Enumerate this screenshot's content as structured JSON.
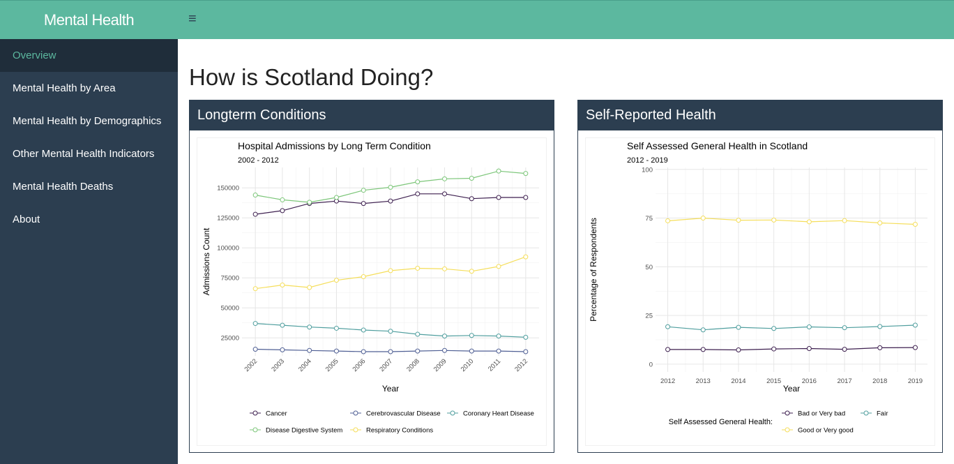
{
  "app": {
    "title": "Mental Health"
  },
  "icons": {
    "menu": "hamburger-menu-icon"
  },
  "colors": {
    "accent": "#5cb89f",
    "sidebar": "#2c3e50",
    "sidebar_active": "#1f2d3a"
  },
  "sidebar": {
    "items": [
      {
        "label": "Overview",
        "active": true
      },
      {
        "label": "Mental Health by Area",
        "active": false
      },
      {
        "label": "Mental Health by Demographics",
        "active": false
      },
      {
        "label": "Other Mental Health Indicators",
        "active": false
      },
      {
        "label": "Mental Health Deaths",
        "active": false
      },
      {
        "label": "About",
        "active": false
      }
    ]
  },
  "main": {
    "heading": "How is Scotland Doing?",
    "boxes": [
      {
        "header": "Longterm Conditions"
      },
      {
        "header": "Self-Reported Health"
      }
    ]
  },
  "chart_data": [
    {
      "type": "line",
      "title": "Hospital Admissions by Long Term Condition",
      "subtitle": "2002 - 2012",
      "xlabel": "Year",
      "ylabel": "Admissions Count",
      "x": [
        "2002",
        "2003",
        "2004",
        "2005",
        "2006",
        "2007",
        "2008",
        "2009",
        "2010",
        "2011",
        "2012"
      ],
      "ylim": [
        10000,
        167000
      ],
      "yticks": [
        25000,
        50000,
        75000,
        100000,
        125000,
        150000
      ],
      "ytick_labels": [
        "25000",
        "50000",
        "75000",
        "100000",
        "125000",
        "150000"
      ],
      "grid": true,
      "legend_title": "",
      "legend_position": "bottom",
      "series": [
        {
          "name": "Cancer",
          "color": "#3d1f4f",
          "values": [
            128000,
            131000,
            137000,
            139000,
            137000,
            139000,
            145000,
            145000,
            141000,
            142000,
            142000
          ]
        },
        {
          "name": "Cerebrovascular Disease",
          "color": "#4f5f94",
          "values": [
            15500,
            15000,
            14500,
            14000,
            13500,
            13500,
            14000,
            14500,
            14000,
            14000,
            13500
          ]
        },
        {
          "name": "Coronary Heart Disease",
          "color": "#4f9e9e",
          "values": [
            37000,
            35500,
            34000,
            33000,
            31500,
            30500,
            28000,
            26500,
            27000,
            26500,
            25500
          ]
        },
        {
          "name": "Disease Digestive System",
          "color": "#7cc679",
          "values": [
            144000,
            140000,
            138000,
            142000,
            148000,
            150500,
            155000,
            157500,
            158000,
            164000,
            162000
          ]
        },
        {
          "name": "Respiratory Conditions",
          "color": "#f5de5a",
          "values": [
            66000,
            69000,
            67000,
            73000,
            76000,
            81000,
            83000,
            82500,
            80500,
            84500,
            92500
          ]
        }
      ]
    },
    {
      "type": "line",
      "title": "Self Assessed General Health in Scotland",
      "subtitle": "2012 - 2019",
      "xlabel": "Year",
      "ylabel": "Percentage of Respondents",
      "x": [
        "2012",
        "2013",
        "2014",
        "2015",
        "2016",
        "2017",
        "2018",
        "2019"
      ],
      "ylim": [
        -4,
        101
      ],
      "yticks": [
        0,
        25,
        50,
        75,
        100
      ],
      "ytick_labels": [
        "0",
        "25",
        "50",
        "75",
        "100"
      ],
      "grid": true,
      "legend_title": "Self Assessed General Health:",
      "legend_position": "bottom-right",
      "series": [
        {
          "name": "Bad or Very bad",
          "color": "#3d1f4f",
          "values": [
            7.5,
            7.5,
            7.3,
            7.8,
            8.0,
            7.6,
            8.4,
            8.5
          ]
        },
        {
          "name": "Fair",
          "color": "#4f9e9e",
          "values": [
            19.2,
            17.6,
            18.9,
            18.3,
            19.1,
            18.7,
            19.3,
            20.0
          ]
        },
        {
          "name": "Good or Very good",
          "color": "#f5de5a",
          "values": [
            73.6,
            75.0,
            73.9,
            74.0,
            73.1,
            73.7,
            72.5,
            71.8
          ]
        }
      ]
    }
  ]
}
